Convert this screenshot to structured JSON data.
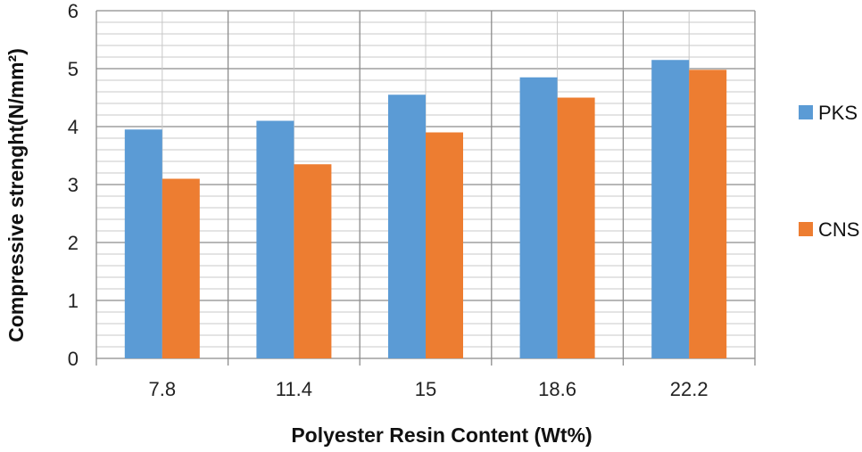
{
  "chart_data": {
    "type": "bar",
    "title": "",
    "xlabel": "Polyester Resin Content (Wt%)",
    "ylabel": "Compressive strenght(N/mm²)",
    "categories": [
      "7.8",
      "11.4",
      "15",
      "18.6",
      "22.2"
    ],
    "series": [
      {
        "name": "PKS",
        "color": "#5B9BD5",
        "values": [
          3.95,
          4.1,
          4.55,
          4.85,
          5.15
        ]
      },
      {
        "name": "CNS",
        "color": "#ED7D31",
        "values": [
          3.1,
          3.35,
          3.9,
          4.5,
          4.98
        ]
      }
    ],
    "ylim": [
      0,
      6
    ],
    "yticks": [
      "0",
      "1",
      "2",
      "3",
      "4",
      "5",
      "6"
    ],
    "grid": true,
    "legend_position": "right"
  }
}
